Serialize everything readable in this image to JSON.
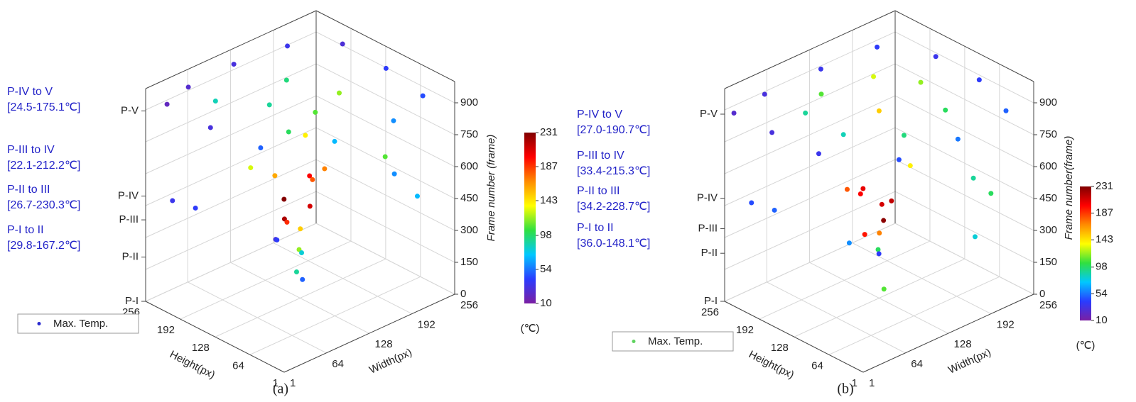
{
  "chart_data": [
    {
      "type": "scatter3d",
      "caption": "(a)",
      "xlabel": "Width(px)",
      "ylabel": "Height(px)",
      "zlabel": "Frame number (frame)",
      "xlim": [
        1,
        256
      ],
      "xticks": [
        1,
        64,
        128,
        192,
        256
      ],
      "ylim": [
        1,
        256
      ],
      "yticks": [
        1,
        64,
        128,
        192,
        256
      ],
      "zlim": [
        0,
        1000
      ],
      "zticks": [
        0,
        150,
        300,
        450,
        600,
        750,
        900
      ],
      "phase_ticks": [
        {
          "value": 0,
          "label": "P-I"
        },
        {
          "value": 208,
          "label": "P-II"
        },
        {
          "value": 383,
          "label": "P-III"
        },
        {
          "value": 495,
          "label": "P-IV"
        },
        {
          "value": 895,
          "label": "P-V"
        }
      ],
      "annotations": [
        {
          "label": "P-IV to V",
          "range": "[24.5-175.1℃]"
        },
        {
          "label": "P-III to IV",
          "range": "[22.1-212.2℃]"
        },
        {
          "label": "P-II to III",
          "range": "[26.7-230.3℃]"
        },
        {
          "label": "P-I to II",
          "range": "[29.8-167.2℃]"
        }
      ],
      "colorbar": {
        "lim": [
          10,
          231
        ],
        "ticks": [
          10,
          54,
          98,
          143,
          187,
          231
        ],
        "unit": "(℃)",
        "colormap": [
          "#7b1fa2",
          "#2a3cff",
          "#00c8ff",
          "#30e040",
          "#ffff00",
          "#ff8c00",
          "#ff0000",
          "#800000"
        ]
      },
      "series": [
        {
          "name": "Max. Temp.",
          "color": "#2a2acf",
          "x": [
            20,
            60,
            128,
            200,
            250,
            250,
            240,
            180,
            100,
            30,
            20,
            100,
            150,
            128,
            180,
            80,
            60,
            100,
            140,
            120,
            160,
            90,
            130,
            110,
            150,
            170,
            80,
            130,
            120,
            100,
            140,
            30,
            20,
            230,
            240,
            200,
            150,
            160,
            60
          ],
          "y": [
            240,
            250,
            250,
            240,
            200,
            120,
            40,
            20,
            30,
            80,
            160,
            150,
            180,
            100,
            120,
            90,
            200,
            140,
            120,
            100,
            150,
            110,
            160,
            130,
            110,
            170,
            160,
            130,
            120,
            100,
            140,
            200,
            230,
            80,
            50,
            60,
            200,
            210,
            40
          ],
          "z": [
            920,
            930,
            940,
            935,
            925,
            915,
            905,
            900,
            905,
            910,
            915,
            920,
            925,
            910,
            900,
            900,
            930,
            600,
            550,
            480,
            500,
            450,
            420,
            380,
            600,
            650,
            640,
            320,
            250,
            200,
            180,
            470,
            480,
            500,
            420,
            650,
            150,
            120,
            300
          ],
          "values": [
            20,
            25,
            30,
            35,
            28,
            40,
            45,
            60,
            70,
            50,
            30,
            90,
            95,
            110,
            120,
            100,
            85,
            160,
            180,
            210,
            200,
            220,
            230,
            190,
            170,
            140,
            130,
            150,
            120,
            90,
            80,
            40,
            35,
            60,
            70,
            110,
            30,
            40,
            50
          ]
        }
      ]
    },
    {
      "type": "scatter3d",
      "caption": "(b)",
      "xlabel": "Width(px)",
      "ylabel": "Height(px)",
      "zlabel": "Frame number(frame)",
      "xlim": [
        1,
        256
      ],
      "xticks": [
        1,
        64,
        128,
        192,
        256
      ],
      "ylim": [
        1,
        256
      ],
      "yticks": [
        1,
        64,
        128,
        192,
        256
      ],
      "zlim": [
        0,
        1000
      ],
      "zticks": [
        0,
        150,
        300,
        450,
        600,
        750,
        900
      ],
      "phase_ticks": [
        {
          "value": 0,
          "label": "P-I"
        },
        {
          "value": 226,
          "label": "P-II"
        },
        {
          "value": 342,
          "label": "P-III"
        },
        {
          "value": 485,
          "label": "P-IV"
        },
        {
          "value": 880,
          "label": "P-V"
        }
      ],
      "annotations": [
        {
          "label": "P-IV to V",
          "range": "[27.0-190.7℃]"
        },
        {
          "label": "P-III to IV",
          "range": "[33.4-215.3℃]"
        },
        {
          "label": "P-II to III",
          "range": "[34.2-228.7℃]"
        },
        {
          "label": "P-I to II",
          "range": "[36.0-148.1℃]"
        }
      ],
      "colorbar": {
        "lim": [
          10,
          231
        ],
        "ticks": [
          10,
          54,
          98,
          143,
          187,
          231
        ],
        "unit": "(℃)",
        "colormap": [
          "#7b1fa2",
          "#2a3cff",
          "#00c8ff",
          "#30e040",
          "#ffff00",
          "#ff8c00",
          "#ff0000",
          "#800000"
        ]
      },
      "series": [
        {
          "name": "Max. Temp.",
          "color": "#5fd35f",
          "x": [
            10,
            60,
            140,
            220,
            255,
            255,
            230,
            150,
            70,
            15,
            10,
            60,
            100,
            170,
            200,
            180,
            110,
            60,
            128,
            110,
            140,
            120,
            150,
            100,
            130,
            90,
            160,
            130,
            120,
            30,
            20,
            230,
            240,
            200,
            150,
            170,
            80
          ],
          "y": [
            250,
            255,
            250,
            245,
            180,
            100,
            20,
            10,
            20,
            100,
            180,
            180,
            200,
            190,
            140,
            70,
            60,
            110,
            128,
            140,
            120,
            110,
            150,
            120,
            160,
            140,
            110,
            130,
            120,
            200,
            230,
            80,
            60,
            40,
            210,
            180,
            60
          ],
          "z": [
            880,
            890,
            900,
            895,
            885,
            880,
            875,
            870,
            875,
            878,
            880,
            900,
            905,
            900,
            895,
            885,
            880,
            890,
            880,
            500,
            450,
            400,
            380,
            350,
            470,
            550,
            600,
            300,
            250,
            460,
            470,
            480,
            420,
            300,
            120,
            80,
            200
          ],
          "values": [
            25,
            30,
            35,
            40,
            35,
            40,
            50,
            55,
            45,
            35,
            30,
            90,
            110,
            130,
            120,
            100,
            95,
            85,
            150,
            200,
            215,
            228,
            210,
            195,
            205,
            180,
            140,
            170,
            100,
            50,
            45,
            90,
            100,
            80,
            60,
            40,
            110
          ]
        }
      ]
    }
  ]
}
